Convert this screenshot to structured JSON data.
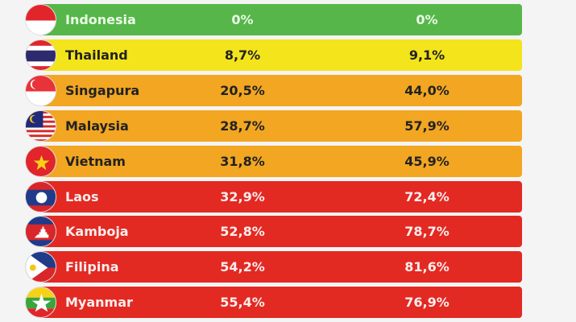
{
  "rows": [
    {
      "country": "Indonesia",
      "col1": "0%",
      "col2": "0%",
      "color": "#56b64a",
      "text": "#eafbe6",
      "flag": "indonesia"
    },
    {
      "country": "Thailand",
      "col1": "8,7%",
      "col2": "9,1%",
      "color": "#f3e41c",
      "text": "#222222",
      "flag": "thailand"
    },
    {
      "country": "Singapura",
      "col1": "20,5%",
      "col2": "44,0%",
      "color": "#f2a621",
      "text": "#222222",
      "flag": "singapore"
    },
    {
      "country": "Malaysia",
      "col1": "28,7%",
      "col2": "57,9%",
      "color": "#f2a621",
      "text": "#222222",
      "flag": "malaysia"
    },
    {
      "country": "Vietnam",
      "col1": "31,8%",
      "col2": "45,9%",
      "color": "#f2a621",
      "text": "#222222",
      "flag": "vietnam"
    },
    {
      "country": "Laos",
      "col1": "32,9%",
      "col2": "72,4%",
      "color": "#e22a22",
      "text": "#fbeeee",
      "flag": "laos"
    },
    {
      "country": "Kamboja",
      "col1": "52,8%",
      "col2": "78,7%",
      "color": "#e22a22",
      "text": "#fbeeee",
      "flag": "cambodia"
    },
    {
      "country": "Filipina",
      "col1": "54,2%",
      "col2": "81,6%",
      "color": "#e22a22",
      "text": "#fbeeee",
      "flag": "philippines"
    },
    {
      "country": "Myanmar",
      "col1": "55,4%",
      "col2": "76,9%",
      "color": "#e22a22",
      "text": "#fbeeee",
      "flag": "myanmar"
    }
  ]
}
